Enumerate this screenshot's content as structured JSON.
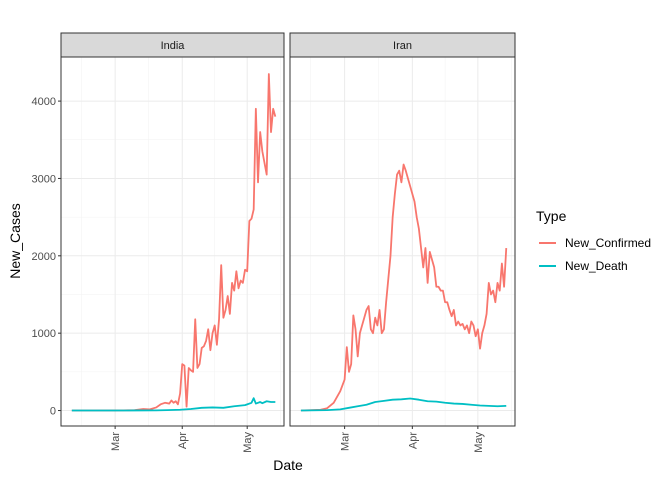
{
  "chart_data": {
    "type": "line",
    "xlabel": "Date",
    "ylabel": "New_Cases",
    "ylim": [
      -200,
      4570
    ],
    "y_ticks": [
      0,
      1000,
      2000,
      3000,
      4000
    ],
    "y_tick_labels": [
      "0",
      "1000",
      "2000",
      "3000",
      "4000"
    ],
    "x_ticks": [
      "2020-03-01",
      "2020-04-01",
      "2020-05-01"
    ],
    "x_tick_labels": [
      "Mar",
      "Apr",
      "May"
    ],
    "xlim": [
      "2020-02-05",
      "2020-05-18"
    ],
    "grid": true,
    "legend": {
      "title": "Type",
      "position": "right",
      "entries": [
        {
          "name": "New_Confirmed",
          "color": "#F8766D"
        },
        {
          "name": "New_Death",
          "color": "#00BFC4"
        }
      ]
    },
    "panels": [
      {
        "strip": "India",
        "series": [
          {
            "name": "New_Confirmed",
            "x": [
              "2020-02-10",
              "2020-02-20",
              "2020-03-01",
              "2020-03-05",
              "2020-03-10",
              "2020-03-14",
              "2020-03-17",
              "2020-03-20",
              "2020-03-22",
              "2020-03-24",
              "2020-03-26",
              "2020-03-27",
              "2020-03-28",
              "2020-03-29",
              "2020-03-30",
              "2020-03-31",
              "2020-04-01",
              "2020-04-02",
              "2020-04-03",
              "2020-04-04",
              "2020-04-05",
              "2020-04-06",
              "2020-04-07",
              "2020-04-08",
              "2020-04-09",
              "2020-04-10",
              "2020-04-11",
              "2020-04-12",
              "2020-04-13",
              "2020-04-14",
              "2020-04-15",
              "2020-04-16",
              "2020-04-17",
              "2020-04-18",
              "2020-04-19",
              "2020-04-20",
              "2020-04-21",
              "2020-04-22",
              "2020-04-23",
              "2020-04-24",
              "2020-04-25",
              "2020-04-26",
              "2020-04-27",
              "2020-04-28",
              "2020-04-29",
              "2020-04-30",
              "2020-05-01",
              "2020-05-02",
              "2020-05-03",
              "2020-05-04",
              "2020-05-05",
              "2020-05-06",
              "2020-05-07",
              "2020-05-08",
              "2020-05-09",
              "2020-05-10",
              "2020-05-11",
              "2020-05-12",
              "2020-05-13",
              "2020-05-14"
            ],
            "y": [
              0,
              0,
              1,
              2,
              5,
              20,
              15,
              40,
              80,
              100,
              90,
              130,
              100,
              120,
              80,
              220,
              600,
              580,
              50,
              550,
              520,
              500,
              1180,
              550,
              600,
              810,
              830,
              900,
              1050,
              780,
              1000,
              1100,
              850,
              1180,
              1880,
              1200,
              1300,
              1480,
              1250,
              1650,
              1550,
              1800,
              1580,
              1680,
              1650,
              1820,
              1800,
              2450,
              2480,
              2600,
              3900,
              2950,
              3600,
              3350,
              3200,
              3050,
              4350,
              3600,
              3900,
              3800
            ]
          },
          {
            "name": "New_Death",
            "x": [
              "2020-02-10",
              "2020-03-01",
              "2020-03-10",
              "2020-03-20",
              "2020-03-25",
              "2020-03-31",
              "2020-04-05",
              "2020-04-10",
              "2020-04-15",
              "2020-04-20",
              "2020-04-25",
              "2020-04-30",
              "2020-05-01",
              "2020-05-03",
              "2020-05-04",
              "2020-05-05",
              "2020-05-06",
              "2020-05-07",
              "2020-05-08",
              "2020-05-10",
              "2020-05-12",
              "2020-05-14"
            ],
            "y": [
              0,
              0,
              1,
              2,
              5,
              10,
              20,
              35,
              40,
              35,
              55,
              70,
              80,
              100,
              160,
              90,
              100,
              110,
              95,
              120,
              110,
              110
            ]
          }
        ]
      },
      {
        "strip": "Iran",
        "series": [
          {
            "name": "New_Confirmed",
            "x": [
              "2020-02-10",
              "2020-02-19",
              "2020-02-22",
              "2020-02-25",
              "2020-02-28",
              "2020-03-01",
              "2020-03-02",
              "2020-03-03",
              "2020-03-04",
              "2020-03-05",
              "2020-03-06",
              "2020-03-07",
              "2020-03-08",
              "2020-03-09",
              "2020-03-10",
              "2020-03-11",
              "2020-03-12",
              "2020-03-13",
              "2020-03-14",
              "2020-03-15",
              "2020-03-16",
              "2020-03-17",
              "2020-03-18",
              "2020-03-19",
              "2020-03-20",
              "2020-03-21",
              "2020-03-22",
              "2020-03-23",
              "2020-03-24",
              "2020-03-25",
              "2020-03-26",
              "2020-03-27",
              "2020-03-28",
              "2020-03-29",
              "2020-03-30",
              "2020-03-31",
              "2020-04-01",
              "2020-04-02",
              "2020-04-03",
              "2020-04-04",
              "2020-04-05",
              "2020-04-06",
              "2020-04-07",
              "2020-04-08",
              "2020-04-09",
              "2020-04-10",
              "2020-04-11",
              "2020-04-12",
              "2020-04-13",
              "2020-04-14",
              "2020-04-15",
              "2020-04-16",
              "2020-04-17",
              "2020-04-18",
              "2020-04-19",
              "2020-04-20",
              "2020-04-21",
              "2020-04-22",
              "2020-04-23",
              "2020-04-24",
              "2020-04-25",
              "2020-04-26",
              "2020-04-27",
              "2020-04-28",
              "2020-04-29",
              "2020-04-30",
              "2020-05-01",
              "2020-05-02",
              "2020-05-03",
              "2020-05-04",
              "2020-05-05",
              "2020-05-06",
              "2020-05-07",
              "2020-05-08",
              "2020-05-09",
              "2020-05-10",
              "2020-05-11",
              "2020-05-12",
              "2020-05-13",
              "2020-05-14"
            ],
            "y": [
              0,
              10,
              30,
              100,
              250,
              400,
              820,
              500,
              600,
              1230,
              1050,
              700,
              1000,
              1100,
              1200,
              1300,
              1350,
              1050,
              1000,
              1200,
              1100,
              1300,
              1000,
              1050,
              1400,
              1700,
              2000,
              2500,
              2800,
              3050,
              3100,
              2950,
              3180,
              3100,
              3000,
              2900,
              2800,
              2700,
              2500,
              2350,
              2100,
              1850,
              2100,
              1650,
              2050,
              1950,
              1850,
              1600,
              1600,
              1550,
              1550,
              1400,
              1400,
              1300,
              1220,
              1300,
              1100,
              1150,
              1100,
              1120,
              1050,
              1100,
              1000,
              1150,
              1100,
              960,
              1050,
              800,
              1000,
              1100,
              1250,
              1650,
              1500,
              1550,
              1400,
              1650,
              1550,
              1900,
              1600,
              2100
            ]
          },
          {
            "name": "New_Death",
            "x": [
              "2020-02-10",
              "2020-02-22",
              "2020-02-28",
              "2020-03-03",
              "2020-03-07",
              "2020-03-11",
              "2020-03-15",
              "2020-03-19",
              "2020-03-23",
              "2020-03-27",
              "2020-03-31",
              "2020-04-04",
              "2020-04-08",
              "2020-04-12",
              "2020-04-16",
              "2020-04-20",
              "2020-04-24",
              "2020-04-28",
              "2020-05-02",
              "2020-05-06",
              "2020-05-10",
              "2020-05-14"
            ],
            "y": [
              0,
              5,
              15,
              35,
              55,
              75,
              110,
              125,
              140,
              145,
              155,
              140,
              120,
              115,
              100,
              90,
              85,
              75,
              65,
              60,
              55,
              60
            ]
          }
        ]
      }
    ]
  }
}
